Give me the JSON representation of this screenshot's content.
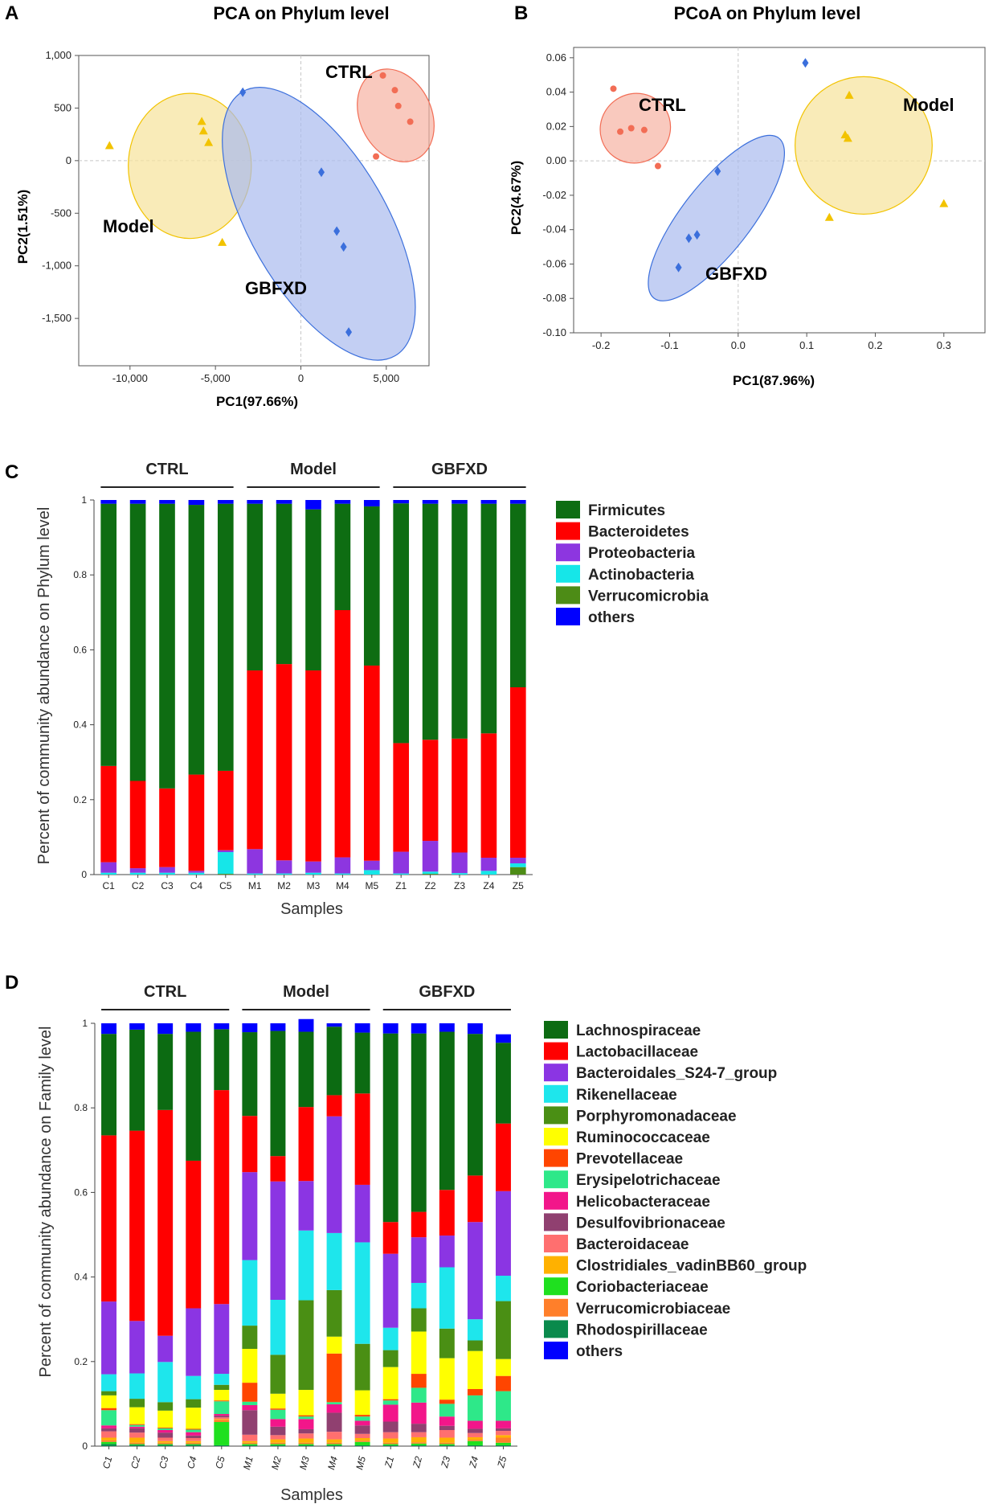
{
  "panels": {
    "A": "A",
    "B": "B",
    "C": "C",
    "D": "D"
  },
  "colors": {
    "ctrl": "#f26d55",
    "ctrl_fill": "#f6b2a3",
    "model": "#f2c300",
    "model_fill": "#f7e29a",
    "gbfxd": "#3b6fdc",
    "gbfxd_fill": "#a9bbee"
  },
  "chart_data": [
    {
      "id": "A",
      "type": "scatter",
      "title": "PCA on Phylum level",
      "xlabel": "PC1(97.66%)",
      "ylabel": "PC2(1.51%)",
      "xlim": [
        -13000,
        7500
      ],
      "ylim": [
        -1950,
        1000
      ],
      "xticks": [
        -10000,
        -5000,
        0,
        5000
      ],
      "xtick_labels": [
        "-10,000",
        "-5,000",
        "0",
        "5,000"
      ],
      "yticks": [
        1000,
        500,
        0,
        -500,
        -1000,
        -1500
      ],
      "ytick_labels": [
        "1,000",
        "500",
        "0",
        "-500",
        "-1,000",
        "-1,500"
      ],
      "groups": [
        {
          "name": "CTRL",
          "marker": "circle",
          "color": "#f26d55",
          "points": [
            [
              4800,
              810
            ],
            [
              5500,
              670
            ],
            [
              5700,
              520
            ],
            [
              6400,
              370
            ],
            [
              4400,
              40
            ]
          ],
          "ellipse": {
            "cx": 5550,
            "cy": 430,
            "rx": 2100,
            "ry": 460,
            "angle": -25
          }
        },
        {
          "name": "Model",
          "marker": "triangle",
          "color": "#f2c300",
          "points": [
            [
              -11200,
              140
            ],
            [
              -5800,
              370
            ],
            [
              -5700,
              280
            ],
            [
              -5400,
              170
            ],
            [
              -4600,
              -780
            ]
          ],
          "ellipse": {
            "cx": -6500,
            "cy": -50,
            "rx": 3600,
            "ry": 690,
            "angle": 0
          }
        },
        {
          "name": "GBFXD",
          "marker": "diamond",
          "color": "#3b6fdc",
          "points": [
            [
              -3400,
              650
            ],
            [
              1200,
              -110
            ],
            [
              2100,
              -670
            ],
            [
              2500,
              -820
            ],
            [
              2800,
              -1630
            ]
          ],
          "ellipse": {
            "cx": 1050,
            "cy": -600,
            "rx": 4000,
            "ry": 1450,
            "angle": -30
          }
        }
      ]
    },
    {
      "id": "B",
      "type": "scatter",
      "title": "PCoA on Phylum level",
      "xlabel": "PC1(87.96%)",
      "ylabel": "PC2(4.67%)",
      "xlim": [
        -0.24,
        0.36
      ],
      "ylim": [
        -0.1,
        0.066
      ],
      "xticks": [
        -0.2,
        -0.1,
        0.0,
        0.1,
        0.2,
        0.3
      ],
      "xtick_labels": [
        "-0.2",
        "-0.1",
        "0.0",
        "0.1",
        "0.2",
        "0.3"
      ],
      "yticks": [
        0.06,
        0.04,
        0.02,
        0.0,
        -0.02,
        -0.04,
        -0.06,
        -0.08,
        -0.1
      ],
      "ytick_labels": [
        "0.06",
        "0.04",
        "0.02",
        "0.00",
        "-0.02",
        "-0.04",
        "-0.06",
        "-0.08",
        "-0.10"
      ],
      "groups": [
        {
          "name": "CTRL",
          "marker": "circle",
          "color": "#f26d55",
          "points": [
            [
              -0.182,
              0.042
            ],
            [
              -0.172,
              0.017
            ],
            [
              -0.156,
              0.019
            ],
            [
              -0.137,
              0.018
            ],
            [
              -0.117,
              -0.003
            ]
          ],
          "ellipse": {
            "cx": -0.15,
            "cy": 0.019,
            "rx": 0.052,
            "ry": 0.02,
            "angle": -38
          }
        },
        {
          "name": "Model",
          "marker": "triangle",
          "color": "#f2c300",
          "points": [
            [
              0.162,
              0.038
            ],
            [
              0.156,
              0.015
            ],
            [
              0.16,
              0.013
            ],
            [
              0.133,
              -0.033
            ],
            [
              0.3,
              -0.025
            ]
          ],
          "ellipse": {
            "cx": 0.183,
            "cy": 0.009,
            "rx": 0.1,
            "ry": 0.04,
            "angle": 0
          }
        },
        {
          "name": "GBFXD",
          "marker": "diamond",
          "color": "#3b6fdc",
          "points": [
            [
              0.098,
              0.057
            ],
            [
              -0.03,
              -0.006
            ],
            [
              -0.072,
              -0.045
            ],
            [
              -0.06,
              -0.043
            ],
            [
              -0.087,
              -0.062
            ]
          ],
          "ellipse": {
            "cx": -0.0318,
            "cy": -0.0333,
            "rx": 0.148,
            "ry": 0.02,
            "angle": -52
          }
        }
      ]
    },
    {
      "id": "C",
      "type": "bar",
      "stacked": true,
      "xlabel": "Samples",
      "ylabel": "Percent of community abundance on Phylum level",
      "ylim": [
        0,
        1
      ],
      "yticks": [
        0,
        0.2,
        0.4,
        0.6,
        0.8,
        1
      ],
      "ytick_labels": [
        "0",
        "0.2",
        "0.4",
        "0.6",
        "0.8",
        "1"
      ],
      "groups": [
        {
          "name": "CTRL",
          "samples": [
            "C1",
            "C2",
            "C3",
            "C4",
            "C5"
          ]
        },
        {
          "name": "Model",
          "samples": [
            "M1",
            "M2",
            "M3",
            "M4",
            "M5"
          ]
        },
        {
          "name": "GBFXD",
          "samples": [
            "Z1",
            "Z2",
            "Z3",
            "Z4",
            "Z5"
          ]
        }
      ],
      "categories": [
        "C1",
        "C2",
        "C3",
        "C4",
        "C5",
        "M1",
        "M2",
        "M3",
        "M4",
        "M5",
        "Z1",
        "Z2",
        "Z3",
        "Z4",
        "Z5"
      ],
      "series": [
        {
          "name": "Verrucomicrobia",
          "color": "#4d8c16",
          "values": [
            0,
            0,
            0,
            0,
            0.002,
            0,
            0,
            0,
            0,
            0,
            0,
            0.002,
            0,
            0,
            0.02
          ]
        },
        {
          "name": "Actinobacteria",
          "color": "#16e6e8",
          "values": [
            0.005,
            0.005,
            0.005,
            0.005,
            0.058,
            0.003,
            0.003,
            0.005,
            0.003,
            0.012,
            0.003,
            0.006,
            0.004,
            0.01,
            0.01
          ]
        },
        {
          "name": "Proteobacteria",
          "color": "#8d36e0",
          "values": [
            0.028,
            0.012,
            0.015,
            0.005,
            0.005,
            0.065,
            0.035,
            0.03,
            0.043,
            0.025,
            0.058,
            0.082,
            0.055,
            0.035,
            0.015
          ]
        },
        {
          "name": "Bacteroidetes",
          "color": "#ff0000",
          "values": [
            0.257,
            0.233,
            0.21,
            0.257,
            0.212,
            0.477,
            0.524,
            0.51,
            0.66,
            0.521,
            0.29,
            0.27,
            0.304,
            0.332,
            0.455
          ]
        },
        {
          "name": "Firmicutes",
          "color": "#0e6d12",
          "values": [
            0.7,
            0.74,
            0.76,
            0.72,
            0.713,
            0.445,
            0.428,
            0.43,
            0.284,
            0.425,
            0.64,
            0.63,
            0.627,
            0.613,
            0.49
          ]
        },
        {
          "name": "others",
          "color": "#0000ff",
          "values": [
            0.01,
            0.01,
            0.01,
            0.013,
            0.01,
            0.01,
            0.01,
            0.025,
            0.01,
            0.017,
            0.009,
            0.01,
            0.01,
            0.01,
            0.01
          ]
        }
      ],
      "legend": [
        "Firmicutes",
        "Bacteroidetes",
        "Proteobacteria",
        "Actinobacteria",
        "Verrucomicrobia",
        "others"
      ],
      "legend_position": "right"
    },
    {
      "id": "D",
      "type": "bar",
      "stacked": true,
      "xlabel": "Samples",
      "ylabel": "Percent of community abundance on Family level",
      "ylim": [
        0,
        1
      ],
      "yticks": [
        0,
        0.2,
        0.4,
        0.6,
        0.8,
        1
      ],
      "ytick_labels": [
        "0",
        "0.2",
        "0.4",
        "0.6",
        "0.8",
        "1"
      ],
      "groups": [
        {
          "name": "CTRL",
          "samples": [
            "C1",
            "C2",
            "C3",
            "C4",
            "C5"
          ]
        },
        {
          "name": "Model",
          "samples": [
            "M1",
            "M2",
            "M3",
            "M4",
            "M5"
          ]
        },
        {
          "name": "GBFXD",
          "samples": [
            "Z1",
            "Z2",
            "Z3",
            "Z4",
            "Z5"
          ]
        }
      ],
      "categories": [
        "C1",
        "C2",
        "C3",
        "C4",
        "C5",
        "M1",
        "M2",
        "M3",
        "M4",
        "M5",
        "Z1",
        "Z2",
        "Z3",
        "Z4",
        "Z5"
      ],
      "series": [
        {
          "name": "Rhodospirillaceae",
          "color": "#0a8a4c",
          "values": [
            0.005,
            0.003,
            0.003,
            0.003,
            0.002,
            0.002,
            0.002,
            0.002,
            0.002,
            0.002,
            0.002,
            0.002,
            0.002,
            0.002,
            0.002
          ]
        },
        {
          "name": "Coriobacteriaceae",
          "color": "#1fe01f",
          "values": [
            0.005,
            0.002,
            0.002,
            0.002,
            0.055,
            0.003,
            0.003,
            0.003,
            0.003,
            0.008,
            0.003,
            0.004,
            0.003,
            0.01,
            0.006
          ]
        },
        {
          "name": "Verrucomicrobiaceae",
          "color": "#ff7f2a",
          "values": [
            0.004,
            0.003,
            0.003,
            0.003,
            0.005,
            0.003,
            0.003,
            0.003,
            0.003,
            0.003,
            0.003,
            0.003,
            0.003,
            0.003,
            0.012
          ]
        },
        {
          "name": "Clostridiales_vadinBB60_group",
          "color": "#ffb100",
          "values": [
            0.006,
            0.012,
            0.004,
            0.004,
            0.002,
            0.004,
            0.008,
            0.01,
            0.008,
            0.006,
            0.01,
            0.012,
            0.012,
            0.006,
            0.006
          ]
        },
        {
          "name": "Bacteroidaceae",
          "color": "#ff6f6f",
          "values": [
            0.015,
            0.012,
            0.008,
            0.007,
            0.004,
            0.015,
            0.01,
            0.012,
            0.018,
            0.01,
            0.015,
            0.012,
            0.018,
            0.01,
            0.01
          ]
        },
        {
          "name": "Desulfovibrionaceae",
          "color": "#904070",
          "values": [
            0.007,
            0.01,
            0.012,
            0.006,
            0.004,
            0.058,
            0.02,
            0.01,
            0.045,
            0.02,
            0.025,
            0.02,
            0.01,
            0.01,
            0.006
          ]
        },
        {
          "name": "Helicobacteraceae",
          "color": "#f2168a",
          "values": [
            0.007,
            0.004,
            0.006,
            0.008,
            0.004,
            0.012,
            0.018,
            0.024,
            0.02,
            0.011,
            0.04,
            0.05,
            0.022,
            0.019,
            0.018
          ]
        },
        {
          "name": "Erysipelotrichaceae",
          "color": "#2ee889",
          "values": [
            0.036,
            0.004,
            0.004,
            0.006,
            0.03,
            0.008,
            0.022,
            0.006,
            0.005,
            0.01,
            0.01,
            0.035,
            0.03,
            0.06,
            0.07
          ]
        },
        {
          "name": "Prevotellaceae",
          "color": "#ff4500",
          "values": [
            0.005,
            0.002,
            0.002,
            0.002,
            0.002,
            0.045,
            0.003,
            0.003,
            0.115,
            0.004,
            0.003,
            0.033,
            0.01,
            0.015,
            0.036
          ]
        },
        {
          "name": "Ruminococcaceae",
          "color": "#ffff00",
          "values": [
            0.03,
            0.04,
            0.04,
            0.05,
            0.025,
            0.08,
            0.035,
            0.06,
            0.04,
            0.058,
            0.076,
            0.1,
            0.098,
            0.09,
            0.04
          ]
        },
        {
          "name": "Porphyromonadaceae",
          "color": "#4a8f14",
          "values": [
            0.01,
            0.02,
            0.02,
            0.02,
            0.012,
            0.055,
            0.092,
            0.212,
            0.11,
            0.11,
            0.04,
            0.055,
            0.07,
            0.025,
            0.137
          ]
        },
        {
          "name": "Rikenellaceae",
          "color": "#1ee6ec",
          "values": [
            0.04,
            0.06,
            0.095,
            0.055,
            0.026,
            0.155,
            0.13,
            0.165,
            0.135,
            0.24,
            0.053,
            0.06,
            0.145,
            0.05,
            0.06
          ]
        },
        {
          "name": "Bacteroidales_S24-7_group",
          "color": "#8b35e3",
          "values": [
            0.172,
            0.124,
            0.062,
            0.16,
            0.165,
            0.208,
            0.28,
            0.117,
            0.276,
            0.136,
            0.175,
            0.108,
            0.075,
            0.23,
            0.2
          ]
        },
        {
          "name": "Lactobacillaceae",
          "color": "#ff0000",
          "values": [
            0.393,
            0.45,
            0.534,
            0.349,
            0.506,
            0.133,
            0.06,
            0.175,
            0.05,
            0.216,
            0.075,
            0.06,
            0.108,
            0.11,
            0.16
          ]
        },
        {
          "name": "Lachnospiraceae",
          "color": "#0c6b12",
          "values": [
            0.24,
            0.239,
            0.18,
            0.305,
            0.144,
            0.198,
            0.296,
            0.178,
            0.162,
            0.144,
            0.446,
            0.422,
            0.374,
            0.335,
            0.191
          ]
        },
        {
          "name": "others",
          "color": "#0000ff",
          "values": [
            0.025,
            0.015,
            0.025,
            0.02,
            0.014,
            0.021,
            0.018,
            0.03,
            0.008,
            0.022,
            0.024,
            0.024,
            0.02,
            0.025,
            0.02
          ]
        }
      ],
      "legend": [
        "Lachnospiraceae",
        "Lactobacillaceae",
        "Bacteroidales_S24-7_group",
        "Rikenellaceae",
        "Porphyromonadaceae",
        "Ruminococcaceae",
        "Prevotellaceae",
        "Erysipelotrichaceae",
        "Helicobacteraceae",
        "Desulfovibrionaceae",
        "Bacteroidaceae",
        "Clostridiales_vadinBB60_group",
        "Coriobacteriaceae",
        "Verrucomicrobiaceae",
        "Rhodospirillaceae",
        "others"
      ],
      "legend_position": "right"
    }
  ]
}
